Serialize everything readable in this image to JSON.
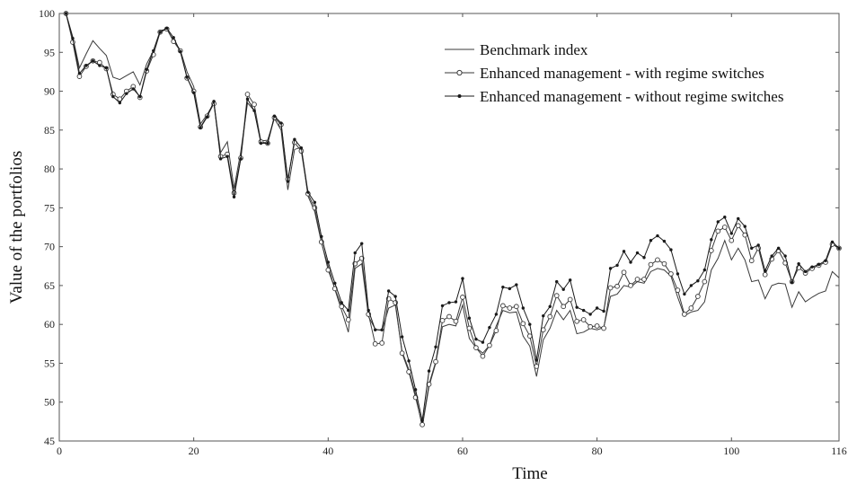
{
  "chart_data": {
    "type": "line",
    "title": "",
    "xlabel": "Time",
    "ylabel": "Value of the portfolios",
    "xlim": [
      0,
      116
    ],
    "ylim": [
      45,
      100
    ],
    "xticks": [
      0,
      20,
      40,
      60,
      80,
      100,
      116
    ],
    "yticks": [
      45,
      50,
      55,
      60,
      65,
      70,
      75,
      80,
      85,
      90,
      95,
      100
    ],
    "grid": false,
    "legend_position": "top-right",
    "x": [
      1,
      2,
      3,
      4,
      5,
      6,
      7,
      8,
      9,
      10,
      11,
      12,
      13,
      14,
      15,
      16,
      17,
      18,
      19,
      20,
      21,
      22,
      23,
      24,
      25,
      26,
      27,
      28,
      29,
      30,
      31,
      32,
      33,
      34,
      35,
      36,
      37,
      38,
      39,
      40,
      41,
      42,
      43,
      44,
      45,
      46,
      47,
      48,
      49,
      50,
      51,
      52,
      53,
      54,
      55,
      56,
      57,
      58,
      59,
      60,
      61,
      62,
      63,
      64,
      65,
      66,
      67,
      68,
      69,
      70,
      71,
      72,
      73,
      74,
      75,
      76,
      77,
      78,
      79,
      80,
      81,
      82,
      83,
      84,
      85,
      86,
      87,
      88,
      89,
      90,
      91,
      92,
      93,
      94,
      95,
      96,
      97,
      98,
      99,
      100,
      101,
      102,
      103,
      104,
      105,
      106,
      107,
      108,
      109,
      110,
      111,
      112,
      113,
      114,
      115,
      116
    ],
    "series": [
      {
        "name": "Benchmark index",
        "marker": "none",
        "color": "#3a3a3a",
        "values": [
          100,
          97,
          93,
          94.8,
          96.5,
          95.5,
          94.6,
          91.8,
          91.5,
          92,
          92.5,
          90.8,
          93.5,
          95.2,
          97.8,
          98,
          96.5,
          95.3,
          92.5,
          90.6,
          85.8,
          87,
          88.5,
          82.1,
          83.5,
          77.5,
          82.2,
          88.5,
          87.5,
          83.6,
          83.7,
          86.5,
          85,
          77.3,
          82.5,
          82.8,
          76.5,
          74.5,
          70.5,
          67.5,
          64.5,
          61.8,
          59,
          67.2,
          67.8,
          61,
          59.4,
          59.2,
          62.1,
          62.5,
          56.5,
          54.2,
          51,
          46.8,
          52,
          55,
          59.7,
          60,
          59.8,
          62.5,
          58.2,
          57,
          56.3,
          57.3,
          59.8,
          61.8,
          61.5,
          61.6,
          58.5,
          57.2,
          53.3,
          58,
          59.5,
          61.8,
          60.6,
          61.8,
          58.8,
          59,
          59.5,
          59.3,
          59.6,
          63.6,
          63.9,
          65,
          64.8,
          65.5,
          65.3,
          66.8,
          67.2,
          67,
          66.2,
          63.5,
          61.1,
          61.6,
          61.8,
          62.9,
          67,
          68.5,
          70.8,
          68.3,
          69.8,
          68.3,
          65.5,
          65.7,
          63.3,
          65,
          65.3,
          65.2,
          62.2,
          64.2,
          62.9,
          63.5,
          64,
          64.3,
          66.8,
          66
        ]
      },
      {
        "name": "Enhanced management - with regime switches",
        "marker": "circle",
        "color": "#3a3a3a",
        "values": [
          100,
          96.3,
          91.9,
          93.2,
          93.9,
          93.7,
          92.9,
          89.6,
          89,
          90,
          90.6,
          89.2,
          92.6,
          94.7,
          97.6,
          98,
          96.4,
          95.2,
          91.7,
          90,
          85.4,
          86.8,
          88.4,
          81.6,
          81.9,
          76.9,
          81.4,
          89.6,
          88.3,
          83.5,
          83.3,
          86.6,
          85.7,
          78.7,
          83.4,
          82.3,
          76.8,
          75,
          70.6,
          67,
          64.6,
          62.3,
          60.6,
          67.8,
          68.5,
          61.3,
          57.5,
          57.6,
          63.3,
          62.8,
          56.3,
          53.9,
          50.6,
          47.1,
          52.3,
          55.2,
          60.5,
          61,
          60.4,
          63.5,
          59.5,
          57,
          55.9,
          57.3,
          59.2,
          62.4,
          62.1,
          62.3,
          60.1,
          58.5,
          54.6,
          59.3,
          61,
          63.7,
          62.3,
          63.2,
          60.4,
          60.6,
          59.7,
          59.8,
          59.5,
          64.7,
          64.9,
          66.7,
          65,
          65.8,
          65.8,
          67.7,
          68.3,
          67.8,
          66.5,
          64.4,
          61.3,
          62.1,
          63.6,
          65.5,
          69.5,
          72,
          72.5,
          70.8,
          72.7,
          71.5,
          68.2,
          69.8,
          66.4,
          68.4,
          69.5,
          67.9,
          65.5,
          67.3,
          66.6,
          67.2,
          67.6,
          68,
          70.3,
          69.8
        ]
      },
      {
        "name": "Enhanced management - without regime switches",
        "marker": "dot",
        "color": "#1a1a1a",
        "values": [
          100,
          96.8,
          92.3,
          93.3,
          93.9,
          93.3,
          93,
          89.3,
          88.5,
          89.7,
          90.3,
          89.3,
          92.8,
          95.2,
          97.6,
          98.1,
          96.9,
          95.1,
          91.8,
          89.8,
          85.3,
          86.7,
          88.7,
          81.3,
          81.6,
          76.4,
          81.3,
          89,
          87.5,
          83.3,
          83.3,
          86.8,
          85.9,
          78.4,
          83.8,
          82.7,
          77,
          75.7,
          71.3,
          68,
          65.3,
          62.8,
          61.8,
          69.2,
          70.4,
          61.8,
          59.3,
          59.3,
          64.3,
          63.6,
          58.4,
          55.3,
          51.6,
          47.6,
          54,
          57.1,
          62.4,
          62.8,
          62.9,
          65.9,
          60.8,
          58.1,
          57.7,
          59.6,
          61.3,
          64.8,
          64.6,
          65.1,
          62.1,
          60,
          55.4,
          61.1,
          62.3,
          65.5,
          64.5,
          65.7,
          62.2,
          61.8,
          61.3,
          62.1,
          61.7,
          67.2,
          67.6,
          69.4,
          68,
          69.2,
          68.6,
          70.8,
          71.4,
          70.7,
          69.6,
          66.5,
          63.9,
          65,
          65.6,
          67,
          70.9,
          73.2,
          73.8,
          71.7,
          73.6,
          72.6,
          69.8,
          70.2,
          66.9,
          68.8,
          69.8,
          68.8,
          65.4,
          67.8,
          66.8,
          67.4,
          67.7,
          68.2,
          70.6,
          69.8
        ]
      }
    ]
  }
}
